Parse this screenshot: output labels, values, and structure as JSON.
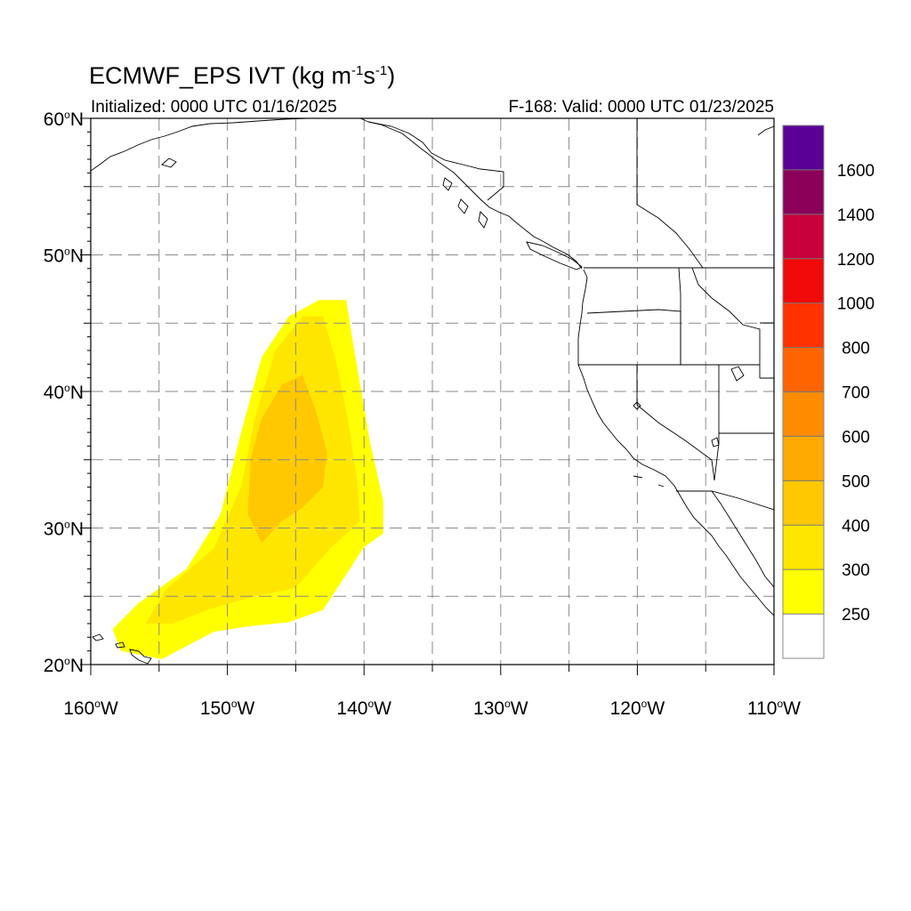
{
  "title": {
    "main": "ECMWF_EPS IVT (kg m",
    "sup1": "-1",
    "mid": "s",
    "sup2": "-1",
    "end": ")"
  },
  "subtitle": {
    "initialized": "Initialized: 0000 UTC 01/16/2025",
    "valid": "F-168: Valid: 0000 UTC 01/23/2025"
  },
  "map_extent": {
    "lon_min": -160,
    "lon_max": -110,
    "lat_min": 20,
    "lat_max": 60
  },
  "lat_labels": [
    {
      "value": 60,
      "label": "60",
      "suffix": "N"
    },
    {
      "value": 50,
      "label": "50",
      "suffix": "N"
    },
    {
      "value": 40,
      "label": "40",
      "suffix": "N"
    },
    {
      "value": 30,
      "label": "30",
      "suffix": "N"
    },
    {
      "value": 20,
      "label": "20",
      "suffix": "N"
    }
  ],
  "lon_labels": [
    {
      "value": -160,
      "label": "160",
      "suffix": "W"
    },
    {
      "value": -150,
      "label": "150",
      "suffix": "W"
    },
    {
      "value": -140,
      "label": "140",
      "suffix": "W"
    },
    {
      "value": -130,
      "label": "130",
      "suffix": "W"
    },
    {
      "value": -120,
      "label": "120",
      "suffix": "W"
    },
    {
      "value": -110,
      "label": "110",
      "suffix": "W"
    }
  ],
  "grid_lons": [
    -155,
    -150,
    -145,
    -140,
    -135,
    -130,
    -125,
    -120,
    -115
  ],
  "grid_lats": [
    55,
    50,
    45,
    40,
    35,
    30,
    25
  ],
  "colorbar": {
    "levels": [
      {
        "color": "#ffffff",
        "label": "250"
      },
      {
        "color": "#ffff00",
        "label": "300"
      },
      {
        "color": "#ffe600",
        "label": "400"
      },
      {
        "color": "#ffc800",
        "label": "500"
      },
      {
        "color": "#ffaa00",
        "label": "600"
      },
      {
        "color": "#ff8c00",
        "label": "700"
      },
      {
        "color": "#ff6400",
        "label": "800"
      },
      {
        "color": "#ff3200",
        "label": "1000"
      },
      {
        "color": "#f00a0a",
        "label": "1200"
      },
      {
        "color": "#c8003c",
        "label": "1400"
      },
      {
        "color": "#8c005a",
        "label": "1600"
      },
      {
        "color": "#5a0096",
        "label": ""
      }
    ]
  },
  "ivt_field": {
    "contours": [
      {
        "min_value": 250,
        "color": "#ffff00",
        "polygon": [
          [
            -141.3,
            46.7
          ],
          [
            -140.8,
            43.5
          ],
          [
            -140.3,
            40.6
          ],
          [
            -139.6,
            36.5
          ],
          [
            -138.6,
            32.0
          ],
          [
            -138.6,
            29.6
          ],
          [
            -140.0,
            28.6
          ],
          [
            -143.0,
            24.0
          ],
          [
            -145.5,
            23.1
          ],
          [
            -148.5,
            22.8
          ],
          [
            -151.0,
            22.4
          ],
          [
            -154.8,
            20.4
          ],
          [
            -157.8,
            21.0
          ],
          [
            -158.4,
            22.6
          ],
          [
            -156.5,
            24.5
          ],
          [
            -153.0,
            27.0
          ],
          [
            -150.5,
            31.0
          ],
          [
            -149.0,
            37.0
          ],
          [
            -147.5,
            42.5
          ],
          [
            -145.5,
            45.5
          ],
          [
            -143.3,
            46.7
          ]
        ]
      },
      {
        "min_value": 300,
        "color": "#ffe600",
        "polygon": [
          [
            -143.0,
            45.5
          ],
          [
            -142.0,
            42.0
          ],
          [
            -141.2,
            38.0
          ],
          [
            -140.5,
            33.5
          ],
          [
            -140.3,
            30.5
          ],
          [
            -142.5,
            28.5
          ],
          [
            -145.0,
            25.6
          ],
          [
            -148.0,
            25.0
          ],
          [
            -151.5,
            24.0
          ],
          [
            -154.0,
            23.0
          ],
          [
            -156.0,
            23.0
          ],
          [
            -154.5,
            25.5
          ],
          [
            -151.0,
            28.5
          ],
          [
            -149.0,
            33.0
          ],
          [
            -148.0,
            38.0
          ],
          [
            -146.5,
            43.0
          ],
          [
            -144.5,
            45.5
          ]
        ]
      },
      {
        "min_value": 400,
        "color": "#ffc800",
        "polygon": [
          [
            -144.5,
            41.2
          ],
          [
            -143.5,
            38.5
          ],
          [
            -142.7,
            35.5
          ],
          [
            -143.0,
            33.0
          ],
          [
            -144.5,
            31.5
          ],
          [
            -146.0,
            30.5
          ],
          [
            -147.5,
            28.9
          ],
          [
            -148.5,
            31.0
          ],
          [
            -148.3,
            35.0
          ],
          [
            -147.5,
            38.0
          ],
          [
            -146.0,
            40.5
          ]
        ]
      }
    ]
  },
  "state_labels": []
}
